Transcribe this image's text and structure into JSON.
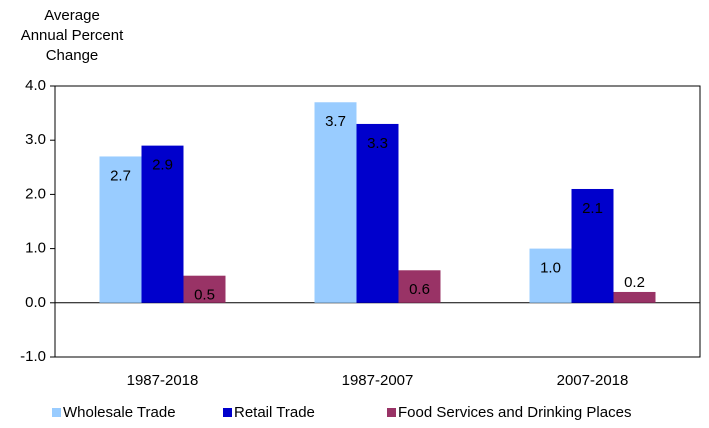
{
  "chart_data": {
    "type": "bar",
    "ylabel": [
      "Average",
      "Annual Percent",
      "Change"
    ],
    "categories": [
      "1987-2018",
      "1987-2007",
      "2007-2018"
    ],
    "series": [
      {
        "name": "Wholesale Trade",
        "color": "#99ccff",
        "label_color": "#000000",
        "values": [
          2.7,
          3.7,
          1.0
        ],
        "value_labels": [
          "2.7",
          "3.7",
          "1.0"
        ]
      },
      {
        "name": "Retail Trade",
        "color": "#0000cc",
        "label_color": "#ffffff",
        "values": [
          2.9,
          3.3,
          2.1
        ],
        "value_labels": [
          "2.9",
          "3.3",
          "2.1"
        ]
      },
      {
        "name": "Food Services and Drinking Places",
        "color": "#993366",
        "label_color": "#ffffff",
        "values": [
          0.5,
          0.6,
          0.2
        ],
        "value_labels": [
          "0.5",
          "0.6",
          "0.2"
        ]
      }
    ],
    "ylim": [
      -1,
      4
    ],
    "yticks": [
      {
        "value": -1,
        "label": "-1.0"
      },
      {
        "value": 0,
        "label": "0.0"
      },
      {
        "value": 1,
        "label": "1.0"
      },
      {
        "value": 2,
        "label": "2.0"
      },
      {
        "value": 3,
        "label": "3.0"
      },
      {
        "value": 4,
        "label": "4.0"
      }
    ],
    "grid": false
  }
}
